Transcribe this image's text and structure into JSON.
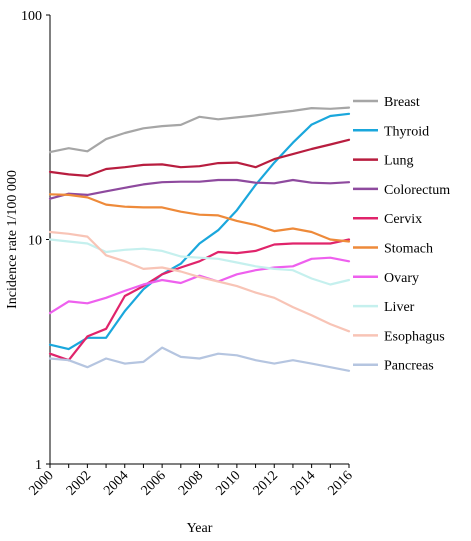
{
  "chart_data": {
    "type": "line",
    "title": "",
    "xlabel": "Year",
    "ylabel": "Incidence rate 1/100 000",
    "yscale": "log",
    "ylim": [
      1,
      100
    ],
    "xlim": [
      2000,
      2016
    ],
    "grid": false,
    "legend": "right",
    "x": [
      2000,
      2001,
      2002,
      2003,
      2004,
      2005,
      2006,
      2007,
      2008,
      2009,
      2010,
      2011,
      2012,
      2013,
      2014,
      2015,
      2016
    ],
    "x_ticks": [
      "2000",
      "2002",
      "2004",
      "2006",
      "2008",
      "2010",
      "2012",
      "2014",
      "2016"
    ],
    "y_ticks": [
      {
        "value": 1,
        "label": "1"
      },
      {
        "value": 10,
        "label": "10"
      },
      {
        "value": 100,
        "label": "100"
      }
    ],
    "series": [
      {
        "name": "Breast",
        "color": "#a6a6a6",
        "values": [
          24.5,
          25.5,
          24.7,
          28.0,
          29.8,
          31.3,
          32.0,
          32.4,
          35.2,
          34.3,
          35.0,
          35.7,
          36.6,
          37.4,
          38.5,
          38.2,
          38.7
        ]
      },
      {
        "name": "Thyroid",
        "color": "#1aa7dc",
        "values": [
          3.4,
          3.25,
          3.65,
          3.65,
          4.8,
          6.0,
          7.0,
          7.8,
          9.6,
          11.0,
          13.5,
          17.5,
          22.0,
          27.0,
          32.5,
          35.5,
          36.3
        ]
      },
      {
        "name": "Lung",
        "color": "#b81d3f",
        "values": [
          20.0,
          19.5,
          19.2,
          20.6,
          21.0,
          21.5,
          21.6,
          21.0,
          21.2,
          21.9,
          22.0,
          21.0,
          22.8,
          24.0,
          25.3,
          26.5,
          27.8
        ]
      },
      {
        "name": "Colorectum",
        "color": "#8e4a9e",
        "values": [
          15.2,
          16.0,
          15.8,
          16.4,
          17.0,
          17.6,
          18.0,
          18.1,
          18.1,
          18.4,
          18.4,
          17.9,
          17.8,
          18.4,
          17.9,
          17.8,
          18.0
        ]
      },
      {
        "name": "Cervix",
        "color": "#e0246b",
        "values": [
          3.1,
          2.9,
          3.7,
          4.0,
          5.6,
          6.2,
          7.0,
          7.5,
          8.0,
          8.8,
          8.7,
          8.9,
          9.5,
          9.6,
          9.6,
          9.6,
          10.0
        ]
      },
      {
        "name": "Stomach",
        "color": "#ee8a3a",
        "values": [
          15.9,
          15.8,
          15.4,
          14.3,
          14.0,
          13.9,
          13.9,
          13.3,
          12.9,
          12.8,
          12.1,
          11.6,
          10.9,
          11.2,
          10.8,
          10.0,
          9.8
        ]
      },
      {
        "name": "Ovary",
        "color": "#ee60ee",
        "values": [
          4.7,
          5.3,
          5.2,
          5.5,
          5.9,
          6.3,
          6.6,
          6.4,
          6.9,
          6.5,
          7.0,
          7.3,
          7.5,
          7.6,
          8.2,
          8.3,
          8.0
        ]
      },
      {
        "name": "Liver",
        "color": "#c5f0ee",
        "values": [
          10.0,
          9.8,
          9.6,
          8.8,
          9.0,
          9.1,
          8.9,
          8.4,
          8.3,
          8.2,
          7.9,
          7.6,
          7.4,
          7.3,
          6.7,
          6.3,
          6.6
        ]
      },
      {
        "name": "Esophagus",
        "color": "#f8c4b6",
        "values": [
          10.8,
          10.6,
          10.3,
          8.5,
          8.0,
          7.4,
          7.5,
          7.2,
          6.8,
          6.5,
          6.2,
          5.8,
          5.5,
          5.0,
          4.6,
          4.2,
          3.9
        ]
      },
      {
        "name": "Pancreas",
        "color": "#b5c5e0",
        "values": [
          2.95,
          2.9,
          2.7,
          2.95,
          2.8,
          2.85,
          3.3,
          3.0,
          2.95,
          3.1,
          3.05,
          2.9,
          2.8,
          2.9,
          2.8,
          2.7,
          2.6
        ]
      }
    ]
  }
}
